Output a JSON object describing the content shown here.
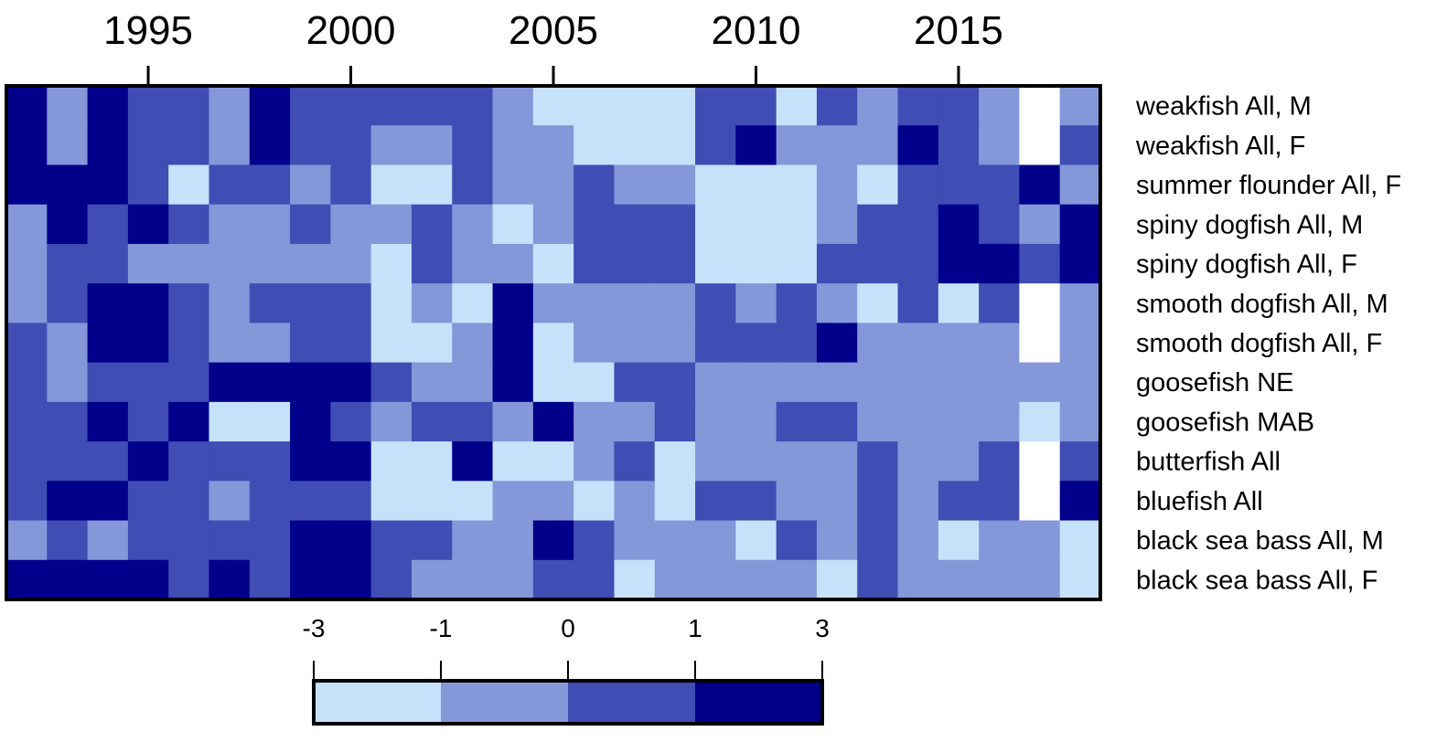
{
  "chart_data": {
    "type": "heatmap",
    "title": "",
    "xlabel": "",
    "ylabel": "",
    "x_axis_position": "top",
    "row_label_position": "right",
    "years": [
      1992,
      1993,
      1994,
      1995,
      1996,
      1997,
      1998,
      1999,
      2000,
      2001,
      2002,
      2003,
      2004,
      2005,
      2006,
      2007,
      2008,
      2009,
      2010,
      2011,
      2012,
      2013,
      2014,
      2015,
      2016,
      2017,
      2018
    ],
    "x_ticks": [
      1995,
      2000,
      2005,
      2010,
      2015
    ],
    "rows": [
      "weakfish All, M",
      "weakfish All, F",
      "summer flounder All, F",
      "spiny dogfish All, M",
      "spiny dogfish All, F",
      "smooth dogfish All, M",
      "smooth dogfish All, F",
      "goosefish NE",
      "goosefish MAB",
      "butterfish All",
      "bluefish All",
      "black sea bass All, M",
      "black sea bass All, F"
    ],
    "bins": [
      {
        "label": "-3 to -1",
        "color": "#c6e2fa"
      },
      {
        "label": "-1 to 0",
        "color": "#8497d9"
      },
      {
        "label": "0 to 1",
        "color": "#3f4db4"
      },
      {
        "label": "1 to 3",
        "color": "#00008b"
      }
    ],
    "missing_color": "#ffffff",
    "legend_ticks": [
      "-3",
      "-1",
      "0",
      "1",
      "3"
    ],
    "legend_placement": "bottom",
    "values": [
      [
        3,
        1,
        3,
        2,
        2,
        1,
        3,
        2,
        2,
        2,
        2,
        2,
        1,
        0,
        0,
        0,
        0,
        2,
        2,
        0,
        2,
        1,
        2,
        2,
        1,
        null,
        1
      ],
      [
        3,
        1,
        3,
        2,
        2,
        1,
        3,
        2,
        2,
        1,
        1,
        2,
        1,
        1,
        0,
        0,
        0,
        2,
        3,
        1,
        1,
        1,
        3,
        2,
        1,
        null,
        2
      ],
      [
        3,
        3,
        3,
        2,
        0,
        2,
        2,
        1,
        2,
        0,
        0,
        2,
        1,
        1,
        2,
        1,
        1,
        0,
        0,
        0,
        1,
        0,
        2,
        2,
        2,
        3,
        1
      ],
      [
        1,
        3,
        2,
        3,
        2,
        1,
        1,
        2,
        1,
        1,
        2,
        1,
        0,
        1,
        2,
        2,
        2,
        0,
        0,
        0,
        1,
        2,
        2,
        3,
        2,
        1,
        3
      ],
      [
        1,
        2,
        2,
        1,
        1,
        1,
        1,
        1,
        1,
        0,
        2,
        1,
        1,
        0,
        2,
        2,
        2,
        0,
        0,
        0,
        2,
        2,
        2,
        3,
        3,
        2,
        3
      ],
      [
        1,
        2,
        3,
        3,
        2,
        1,
        2,
        2,
        2,
        0,
        1,
        0,
        3,
        1,
        1,
        1,
        1,
        2,
        1,
        2,
        1,
        0,
        2,
        0,
        2,
        null,
        1
      ],
      [
        2,
        1,
        3,
        3,
        2,
        1,
        1,
        2,
        2,
        0,
        0,
        1,
        3,
        0,
        1,
        1,
        1,
        2,
        2,
        2,
        3,
        1,
        1,
        1,
        1,
        null,
        1
      ],
      [
        2,
        1,
        2,
        2,
        2,
        3,
        3,
        3,
        3,
        2,
        1,
        1,
        3,
        0,
        0,
        2,
        2,
        1,
        1,
        1,
        1,
        1,
        1,
        1,
        1,
        1,
        1
      ],
      [
        2,
        2,
        3,
        2,
        3,
        0,
        0,
        3,
        2,
        1,
        2,
        2,
        1,
        3,
        1,
        1,
        2,
        1,
        1,
        2,
        2,
        1,
        1,
        1,
        1,
        0,
        1
      ],
      [
        2,
        2,
        2,
        3,
        2,
        2,
        2,
        3,
        3,
        0,
        0,
        3,
        0,
        0,
        1,
        2,
        0,
        1,
        1,
        1,
        1,
        2,
        1,
        1,
        2,
        null,
        2
      ],
      [
        2,
        3,
        3,
        2,
        2,
        1,
        2,
        2,
        2,
        0,
        0,
        0,
        1,
        1,
        0,
        1,
        0,
        2,
        2,
        1,
        1,
        2,
        1,
        2,
        2,
        null,
        3
      ],
      [
        1,
        2,
        1,
        2,
        2,
        2,
        2,
        3,
        3,
        2,
        2,
        1,
        1,
        3,
        2,
        1,
        1,
        1,
        0,
        2,
        1,
        2,
        1,
        0,
        1,
        1,
        0
      ],
      [
        3,
        3,
        3,
        3,
        2,
        3,
        2,
        3,
        3,
        2,
        1,
        1,
        1,
        2,
        2,
        0,
        1,
        1,
        1,
        1,
        0,
        2,
        1,
        1,
        1,
        1,
        0
      ]
    ]
  }
}
